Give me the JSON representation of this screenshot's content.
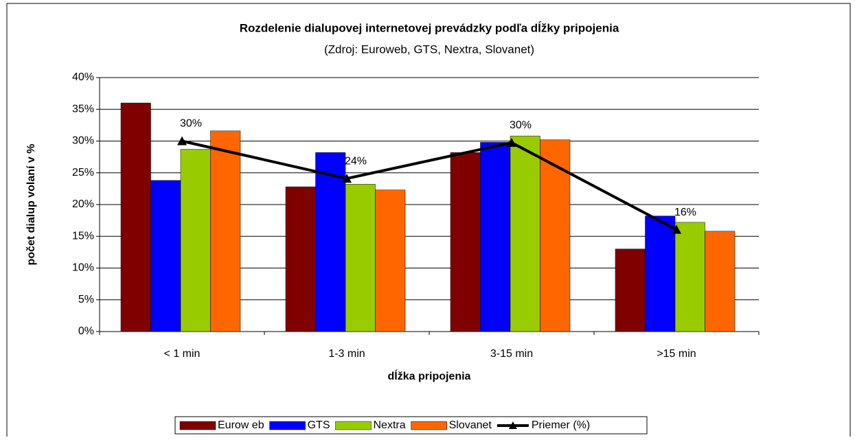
{
  "chart_data": {
    "type": "bar",
    "title": "Rozdelenie dialupovej internetovej prevádzky podľa dĺžky pripojenia",
    "subtitle": "(Zdroj: Euroweb, GTS, Nextra, Slovanet)",
    "y_label": "počet dialup volaní v %",
    "x_label": "dĺžka pripojenia",
    "categories": [
      "< 1 min",
      "1-3 min",
      "3-15 min",
      ">15 min"
    ],
    "series": [
      {
        "name": "Eurow eb",
        "color": "#800000",
        "values": [
          36,
          22.8,
          28.2,
          13
        ]
      },
      {
        "name": "GTS",
        "color": "#0000ff",
        "values": [
          23.8,
          28.2,
          29.8,
          18.2
        ]
      },
      {
        "name": "Nextra",
        "color": "#99cc00",
        "values": [
          28.7,
          23.2,
          30.8,
          17.2
        ]
      },
      {
        "name": "Slovanet",
        "color": "#ff6600",
        "values": [
          31.6,
          22.3,
          30.2,
          15.8
        ]
      },
      {
        "name": "Priemer (%)",
        "color": "#000000",
        "type": "line",
        "values": [
          30,
          24.1,
          29.75,
          16.05
        ],
        "value_labels": [
          "30%",
          "24%",
          "30%",
          "16%"
        ]
      }
    ],
    "ylim": [
      0,
      40
    ],
    "yticks": [
      {
        "value": 0,
        "label": "0%"
      },
      {
        "value": 5,
        "label": "5%"
      },
      {
        "value": 10,
        "label": "10%"
      },
      {
        "value": 15,
        "label": "15%"
      },
      {
        "value": 20,
        "label": "20%"
      },
      {
        "value": 25,
        "label": "25%"
      },
      {
        "value": 30,
        "label": "30%"
      },
      {
        "value": 35,
        "label": "35%"
      },
      {
        "value": 40,
        "label": "40%"
      }
    ],
    "grid": true,
    "legend": "bottom"
  }
}
